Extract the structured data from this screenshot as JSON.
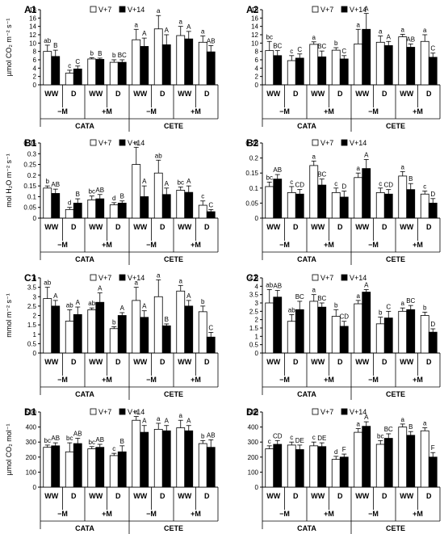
{
  "figure": {
    "row_ylabels": [
      "µmol CO₂ m⁻² s⁻¹",
      "mol H₂O m⁻² s⁻¹",
      "mmol m⁻² s⁻¹",
      "µmol CO₂ mol⁻¹"
    ],
    "legend": {
      "v7": "V+7",
      "v14": "V+14"
    },
    "colors": {
      "v7": "#ffffff",
      "v14": "#000000",
      "axis": "#000000"
    },
    "categories": [
      "WW",
      "D",
      "WW",
      "D",
      "WW",
      "D",
      "WW",
      "D"
    ],
    "groups": [
      "−M",
      "+M",
      "−M",
      "+M"
    ],
    "sites": [
      "CATA",
      "CETE"
    ]
  },
  "chart_data": [
    {
      "panel": "A1",
      "type": "bar",
      "ylim": [
        0,
        18
      ],
      "ticks": [
        0,
        2,
        4,
        6,
        8,
        10,
        12,
        14,
        16,
        18
      ],
      "categories": [
        "WW",
        "D",
        "WW",
        "D",
        "WW",
        "D",
        "WW",
        "D"
      ],
      "series": [
        {
          "name": "V+7",
          "values": [
            8,
            2.8,
            6.2,
            5.4,
            10.8,
            13.4,
            11.8,
            10.2
          ],
          "errors": [
            1.5,
            0.7,
            0.3,
            0.6,
            2.5,
            3.2,
            2.2,
            1.5
          ],
          "labels": [
            "ab",
            "c",
            "b",
            "b",
            "a",
            "a",
            "a",
            "a"
          ]
        },
        {
          "name": "V+14",
          "values": [
            6.8,
            3.8,
            6.1,
            5.4,
            9.2,
            9.6,
            11.0,
            7.9
          ],
          "errors": [
            1.5,
            0.7,
            0.3,
            0.6,
            2.0,
            2.4,
            1.8,
            1.5
          ],
          "labels": [
            "B",
            "C",
            "B",
            "BC",
            "A",
            "A",
            "A",
            "AB"
          ]
        }
      ]
    },
    {
      "panel": "A2",
      "type": "bar",
      "ylim": [
        0,
        18
      ],
      "ticks": [
        0,
        2,
        4,
        6,
        8,
        10,
        12,
        14,
        16,
        18
      ],
      "categories": [
        "WW",
        "D",
        "WW",
        "D",
        "WW",
        "D",
        "WW",
        "D"
      ],
      "series": [
        {
          "name": "V+7",
          "values": [
            8.2,
            5.8,
            9.7,
            8.3,
            9.8,
            10.2,
            11.5,
            10.4
          ],
          "errors": [
            2.2,
            1.2,
            0.6,
            0.6,
            3.5,
            1.5,
            0.6,
            1.6
          ],
          "labels": [
            "bc",
            "c",
            "a",
            "b",
            "a",
            "a",
            "a",
            "a"
          ]
        },
        {
          "name": "V+14",
          "values": [
            7.0,
            6.4,
            6.7,
            6.2,
            13.3,
            9.4,
            9.0,
            6.6
          ],
          "errors": [
            1.2,
            1.0,
            1.4,
            0.8,
            3.8,
            1.0,
            0.8,
            1.0
          ],
          "labels": [
            "BC",
            "C",
            "BC",
            "C",
            "A",
            "A",
            "AB",
            "C"
          ]
        }
      ]
    },
    {
      "panel": "B1",
      "type": "bar",
      "ylim": [
        0,
        0.35
      ],
      "ticks": [
        0,
        0.05,
        0.1,
        0.15,
        0.2,
        0.25,
        0.3,
        0.35
      ],
      "categories": [
        "WW",
        "D",
        "WW",
        "D",
        "WW",
        "D",
        "WW",
        "D"
      ],
      "series": [
        {
          "name": "V+7",
          "values": [
            0.14,
            0.04,
            0.085,
            0.062,
            0.25,
            0.21,
            0.13,
            0.06
          ],
          "errors": [
            0.01,
            0.01,
            0.018,
            0.01,
            0.08,
            0.06,
            0.015,
            0.02
          ],
          "labels": [
            "b",
            "d",
            "bc",
            "d",
            "a",
            "ab",
            "bc",
            "c"
          ]
        },
        {
          "name": "V+14",
          "values": [
            0.115,
            0.07,
            0.09,
            0.07,
            0.1,
            0.11,
            0.12,
            0.03
          ],
          "errors": [
            0.02,
            0.02,
            0.02,
            0.01,
            0.05,
            0.03,
            0.03,
            0.01
          ],
          "labels": [
            "AB",
            "B",
            "AB",
            "B",
            "A",
            "A",
            "A",
            "C"
          ]
        }
      ]
    },
    {
      "panel": "B2",
      "type": "bar",
      "ylim": [
        0,
        0.25
      ],
      "ticks": [
        0,
        0.05,
        0.1,
        0.15,
        0.2,
        0.25
      ],
      "categories": [
        "WW",
        "D",
        "WW",
        "D",
        "WW",
        "D",
        "WW",
        "D"
      ],
      "series": [
        {
          "name": "V+7",
          "values": [
            0.105,
            0.085,
            0.175,
            0.085,
            0.135,
            0.085,
            0.14,
            0.08
          ],
          "errors": [
            0.015,
            0.02,
            0.015,
            0.015,
            0.015,
            0.015,
            0.015,
            0.01
          ],
          "labels": [
            "bc",
            "c",
            "a",
            "c",
            "a",
            "c",
            "a",
            "c"
          ]
        },
        {
          "name": "V+14",
          "values": [
            0.13,
            0.08,
            0.11,
            0.07,
            0.165,
            0.08,
            0.095,
            0.05
          ],
          "errors": [
            0.015,
            0.015,
            0.02,
            0.02,
            0.03,
            0.015,
            0.02,
            0.015
          ],
          "labels": [
            "AB",
            "CD",
            "BC",
            "D",
            "A",
            "CD",
            "B",
            "D"
          ]
        }
      ]
    },
    {
      "panel": "C1",
      "type": "bar",
      "ylim": [
        0,
        4
      ],
      "ticks": [
        0,
        0.5,
        1,
        1.5,
        2,
        2.5,
        3,
        3.5,
        4
      ],
      "categories": [
        "WW",
        "D",
        "WW",
        "D",
        "WW",
        "D",
        "WW",
        "D"
      ],
      "series": [
        {
          "name": "V+7",
          "values": [
            2.9,
            1.7,
            2.3,
            1.3,
            2.8,
            3.0,
            3.3,
            2.2
          ],
          "errors": [
            0.6,
            0.6,
            0.1,
            0.1,
            0.7,
            0.9,
            0.3,
            0.3
          ],
          "labels": [
            "ab",
            "ab",
            "ab",
            "b",
            "a",
            "a",
            "a",
            "b"
          ]
        },
        {
          "name": "V+14",
          "values": [
            2.5,
            2.05,
            2.7,
            2.0,
            1.9,
            1.45,
            2.5,
            0.85
          ],
          "errors": [
            0.3,
            0.4,
            0.5,
            0.15,
            0.35,
            0.1,
            0.3,
            0.25
          ],
          "labels": [
            "A",
            "A",
            "A",
            "A",
            "A",
            "B",
            "A",
            "C"
          ]
        }
      ]
    },
    {
      "panel": "C2",
      "type": "bar",
      "ylim": [
        0,
        4.5
      ],
      "ticks": [
        0,
        0.5,
        1,
        1.5,
        2,
        2.5,
        3,
        3.5,
        4,
        4.5
      ],
      "categories": [
        "WW",
        "D",
        "WW",
        "D",
        "WW",
        "D",
        "WW",
        "D"
      ],
      "series": [
        {
          "name": "V+7",
          "values": [
            3.0,
            1.9,
            3.1,
            2.2,
            2.95,
            1.75,
            2.5,
            2.25
          ],
          "errors": [
            0.8,
            0.4,
            0.4,
            0.4,
            0.2,
            0.4,
            0.2,
            0.2
          ],
          "labels": [
            "ab",
            "ab",
            "a",
            "b",
            "a",
            "b",
            "a",
            "b"
          ]
        },
        {
          "name": "V+14",
          "values": [
            3.35,
            2.6,
            2.75,
            1.6,
            3.65,
            2.1,
            2.6,
            1.25
          ],
          "errors": [
            0.4,
            0.5,
            0.25,
            0.3,
            0.15,
            0.4,
            0.25,
            0.2
          ],
          "labels": [
            "AB",
            "BC",
            "BC",
            "CD",
            "A",
            "C",
            "BC",
            "D"
          ]
        }
      ]
    },
    {
      "panel": "D1",
      "type": "bar",
      "ylim": [
        0,
        500
      ],
      "ticks": [
        0,
        100,
        200,
        300,
        400,
        500
      ],
      "categories": [
        "WW",
        "D",
        "WW",
        "D",
        "WW",
        "D",
        "WW",
        "D"
      ],
      "series": [
        {
          "name": "V+7",
          "values": [
            265,
            235,
            255,
            210,
            445,
            385,
            395,
            290
          ],
          "errors": [
            15,
            60,
            15,
            15,
            25,
            40,
            50,
            20
          ],
          "labels": [
            "bc",
            "bc",
            "bc",
            "c",
            "a",
            "a",
            "a",
            "b"
          ]
        },
        {
          "name": "V+14",
          "values": [
            275,
            290,
            265,
            235,
            365,
            375,
            375,
            265
          ],
          "errors": [
            20,
            35,
            20,
            40,
            45,
            35,
            35,
            50
          ],
          "labels": [
            "AB",
            "AB",
            "AB",
            "B",
            "A",
            "A",
            "A",
            "AB"
          ]
        }
      ]
    },
    {
      "panel": "D2",
      "type": "bar",
      "ylim": [
        0,
        500
      ],
      "ticks": [
        0,
        100,
        200,
        300,
        400,
        500
      ],
      "categories": [
        "WW",
        "D",
        "WW",
        "D",
        "WW",
        "D",
        "WW",
        "D"
      ],
      "series": [
        {
          "name": "V+7",
          "values": [
            255,
            280,
            275,
            185,
            365,
            285,
            400,
            375
          ],
          "errors": [
            20,
            20,
            25,
            20,
            25,
            25,
            20,
            20
          ],
          "labels": [
            "c",
            "c",
            "c",
            "d",
            "a",
            "bc",
            "a",
            "a"
          ]
        },
        {
          "name": "V+14",
          "values": [
            285,
            250,
            270,
            200,
            405,
            325,
            345,
            200
          ],
          "errors": [
            25,
            30,
            25,
            20,
            30,
            30,
            25,
            30
          ],
          "labels": [
            "CD",
            "DE",
            "DE",
            "F",
            "A",
            "BC",
            "B",
            "F"
          ]
        }
      ]
    }
  ]
}
